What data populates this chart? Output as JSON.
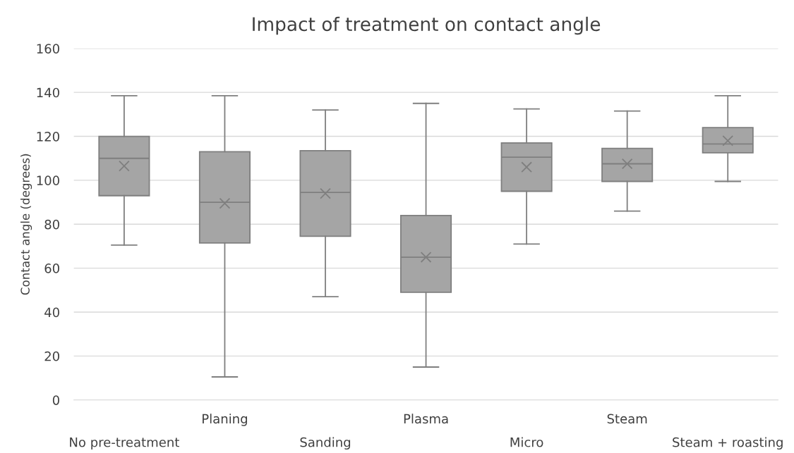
{
  "chart_data": {
    "type": "box",
    "title": "Impact of treatment on contact angle",
    "ylabel": "Contact angle (degrees)",
    "categories": [
      "No pre-treatment",
      "Planing",
      "Sanding",
      "Plasma",
      "Micro",
      "Steam",
      "Steam + roasting"
    ],
    "color": "#a5a5a5",
    "boxes": [
      {
        "low": 70.5,
        "q1": 93,
        "median": 110,
        "q3": 120,
        "high": 138.5,
        "mean": 106.5
      },
      {
        "low": 10.5,
        "q1": 71.5,
        "median": 90,
        "q3": 113,
        "high": 138.5,
        "mean": 89.5
      },
      {
        "low": 47,
        "q1": 74.5,
        "median": 94.5,
        "q3": 113.5,
        "high": 132,
        "mean": 94
      },
      {
        "low": 15,
        "q1": 49,
        "median": 65,
        "q3": 84,
        "high": 135,
        "mean": 65
      },
      {
        "low": 71,
        "q1": 95,
        "median": 110.5,
        "q3": 117,
        "high": 132.5,
        "mean": 106
      },
      {
        "low": 86,
        "q1": 99.5,
        "median": 107.5,
        "q3": 114.5,
        "high": 131.5,
        "mean": 107.5
      },
      {
        "low": 99.5,
        "q1": 112.5,
        "median": 116.5,
        "q3": 124,
        "high": 138.5,
        "mean": 118
      }
    ],
    "ylim": [
      0,
      160
    ],
    "yticks": [
      0,
      20,
      40,
      60,
      80,
      100,
      120,
      140,
      160
    ],
    "grid": "y"
  }
}
